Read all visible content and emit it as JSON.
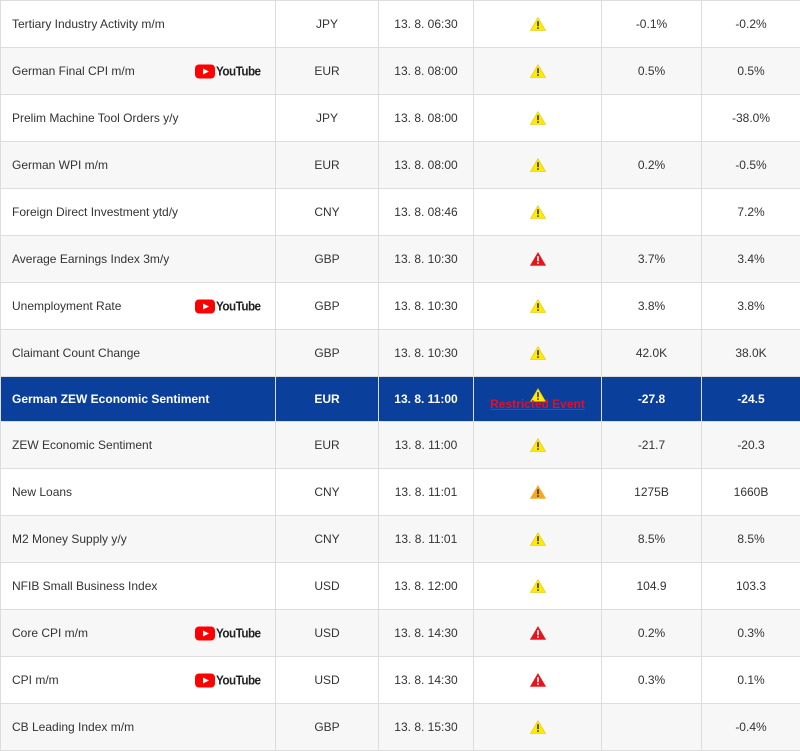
{
  "colors": {
    "highlight_bg": "#0b3f9c",
    "warn_yellow": "#ffea00",
    "warn_orange": "#f5a623",
    "warn_red": "#e8141b",
    "restricted_text": "#e0102a",
    "youtube_red": "#ff0000"
  },
  "youtube": {
    "label": "YouTube"
  },
  "rows": [
    {
      "event": "Tertiary Industry Activity m/m",
      "currency": "JPY",
      "time": "13. 8. 06:30",
      "impact": "yellow",
      "actual": "-0.1%",
      "forecast": "-0.2%",
      "youtube": false
    },
    {
      "event": "German Final CPI m/m",
      "currency": "EUR",
      "time": "13. 8. 08:00",
      "impact": "yellow",
      "actual": "0.5%",
      "forecast": "0.5%",
      "youtube": true
    },
    {
      "event": "Prelim Machine Tool Orders y/y",
      "currency": "JPY",
      "time": "13. 8. 08:00",
      "impact": "yellow",
      "actual": "",
      "forecast": "-38.0%",
      "youtube": false
    },
    {
      "event": "German WPI m/m",
      "currency": "EUR",
      "time": "13. 8. 08:00",
      "impact": "yellow",
      "actual": "0.2%",
      "forecast": "-0.5%",
      "youtube": false
    },
    {
      "event": "Foreign Direct Investment ytd/y",
      "currency": "CNY",
      "time": "13. 8. 08:46",
      "impact": "yellow",
      "actual": "",
      "forecast": "7.2%",
      "youtube": false
    },
    {
      "event": "Average Earnings Index 3m/y",
      "currency": "GBP",
      "time": "13. 8. 10:30",
      "impact": "red",
      "actual": "3.7%",
      "forecast": "3.4%",
      "youtube": false
    },
    {
      "event": "Unemployment Rate",
      "currency": "GBP",
      "time": "13. 8. 10:30",
      "impact": "yellow",
      "actual": "3.8%",
      "forecast": "3.8%",
      "youtube": true
    },
    {
      "event": "Claimant Count Change",
      "currency": "GBP",
      "time": "13. 8. 10:30",
      "impact": "yellow",
      "actual": "42.0K",
      "forecast": "38.0K",
      "youtube": false
    },
    {
      "event": "German ZEW Economic Sentiment",
      "currency": "EUR",
      "time": "13. 8. 11:00",
      "impact": "yellow",
      "actual": "-27.8",
      "forecast": "-24.5",
      "youtube": false,
      "highlight": true,
      "restricted_label": "Restricted Event"
    },
    {
      "event": "ZEW Economic Sentiment",
      "currency": "EUR",
      "time": "13. 8. 11:00",
      "impact": "yellow",
      "actual": "-21.7",
      "forecast": "-20.3",
      "youtube": false
    },
    {
      "event": "New Loans",
      "currency": "CNY",
      "time": "13. 8. 11:01",
      "impact": "orange",
      "actual": "1275B",
      "forecast": "1660B",
      "youtube": false
    },
    {
      "event": "M2 Money Supply y/y",
      "currency": "CNY",
      "time": "13. 8. 11:01",
      "impact": "yellow",
      "actual": "8.5%",
      "forecast": "8.5%",
      "youtube": false
    },
    {
      "event": "NFIB Small Business Index",
      "currency": "USD",
      "time": "13. 8. 12:00",
      "impact": "yellow",
      "actual": "104.9",
      "forecast": "103.3",
      "youtube": false
    },
    {
      "event": "Core CPI m/m",
      "currency": "USD",
      "time": "13. 8. 14:30",
      "impact": "red",
      "actual": "0.2%",
      "forecast": "0.3%",
      "youtube": true
    },
    {
      "event": "CPI m/m",
      "currency": "USD",
      "time": "13. 8. 14:30",
      "impact": "red",
      "actual": "0.3%",
      "forecast": "0.1%",
      "youtube": true
    },
    {
      "event": "CB Leading Index m/m",
      "currency": "GBP",
      "time": "13. 8. 15:30",
      "impact": "yellow",
      "actual": "",
      "forecast": "-0.4%",
      "youtube": false
    }
  ]
}
